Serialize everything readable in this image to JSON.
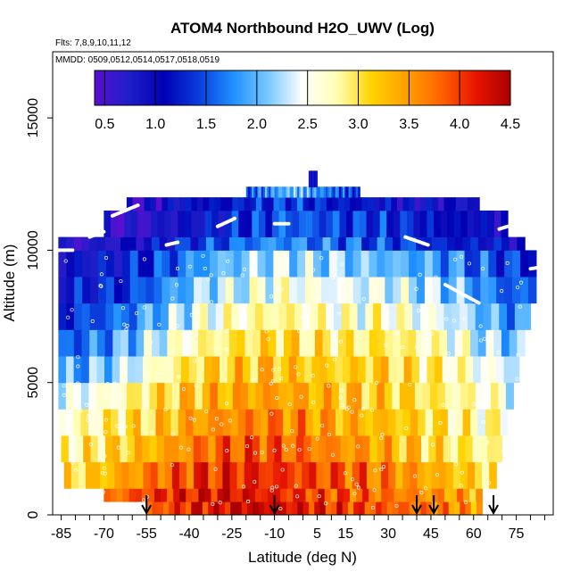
{
  "chart_data": {
    "type": "heatmap",
    "title": "ATOM4 Northbound H2O_UWV (Log)",
    "subtitle_flights": "Flts: 7,8,9,10,11,12",
    "subtitle_dates": "MMDD: 0509,0512,0514,0517,0518,0519",
    "xlabel": "Latitude (deg N)",
    "ylabel": "Altitude (m)",
    "xlim": [
      -88,
      88
    ],
    "ylim": [
      0,
      17500
    ],
    "x_ticks": [
      -85,
      -70,
      -55,
      -40,
      -25,
      -10,
      5,
      15,
      30,
      45,
      60,
      75
    ],
    "x_tick_labels": [
      "-85",
      "-70",
      "-55",
      "-40",
      "-25",
      "-10",
      "5",
      "15",
      "30",
      "45",
      "60",
      "75"
    ],
    "y_ticks": [
      0,
      5000,
      10000,
      15000
    ],
    "y_tick_labels": [
      "0",
      "5000",
      "10000",
      "15000"
    ],
    "colorbar": {
      "min": 0.4,
      "max": 4.5,
      "ticks": [
        0.5,
        1.0,
        1.5,
        2.0,
        2.5,
        3.0,
        3.5,
        4.0,
        4.5
      ],
      "tick_labels": [
        "0.5",
        "1.0",
        "1.5",
        "2.0",
        "2.5",
        "3.0",
        "3.5",
        "4.0",
        "4.5"
      ],
      "colors": [
        "#5a0fd0",
        "#1e1ec8",
        "#0000b4",
        "#0a3cdc",
        "#1e90ff",
        "#78c8ff",
        "#ffffff",
        "#ffffb4",
        "#ffd200",
        "#ffa000",
        "#ff6400",
        "#e61400",
        "#aa0000"
      ]
    },
    "profile_bands": [
      {
        "alt_low": 0,
        "alt_high": 500,
        "lat_start": -55,
        "lat_end": 63,
        "values": [
          3.7,
          4.0,
          4.2,
          4.3,
          4.4,
          4.3,
          4.2,
          4.1,
          4.0,
          3.9,
          3.8,
          3.7,
          3.6,
          3.5
        ]
      },
      {
        "alt_low": 500,
        "alt_high": 1000,
        "lat_start": -70,
        "lat_end": 63,
        "values": [
          3.6,
          3.9,
          4.1,
          4.2,
          4.3,
          4.2,
          4.1,
          4.0,
          3.9,
          3.8,
          3.7,
          3.6,
          3.5,
          3.4
        ]
      },
      {
        "alt_low": 1000,
        "alt_high": 2000,
        "lat_start": -84,
        "lat_end": 68,
        "values": [
          3.0,
          3.2,
          3.5,
          3.8,
          4.0,
          4.1,
          4.1,
          4.0,
          3.9,
          3.8,
          3.6,
          3.4,
          3.2,
          3.0
        ]
      },
      {
        "alt_low": 2000,
        "alt_high": 3000,
        "lat_start": -85,
        "lat_end": 70,
        "values": [
          2.8,
          3.0,
          3.2,
          3.4,
          3.7,
          3.9,
          3.9,
          3.8,
          3.6,
          3.5,
          3.3,
          3.1,
          2.9,
          2.8
        ]
      },
      {
        "alt_low": 3000,
        "alt_high": 4000,
        "lat_start": -86,
        "lat_end": 72,
        "values": [
          2.6,
          2.8,
          3.0,
          3.2,
          3.5,
          3.6,
          3.7,
          3.6,
          3.4,
          3.3,
          3.2,
          3.0,
          2.8,
          2.7
        ]
      },
      {
        "alt_low": 4000,
        "alt_high": 5000,
        "lat_start": -86,
        "lat_end": 74,
        "values": [
          2.3,
          2.5,
          2.8,
          3.1,
          3.3,
          3.4,
          3.5,
          3.4,
          3.3,
          3.2,
          3.1,
          2.9,
          2.7,
          2.5
        ]
      },
      {
        "alt_low": 5000,
        "alt_high": 6000,
        "lat_start": -86,
        "lat_end": 76,
        "values": [
          1.8,
          2.0,
          2.3,
          2.8,
          3.1,
          3.2,
          3.3,
          3.2,
          3.1,
          3.2,
          3.0,
          2.8,
          2.5,
          2.3
        ]
      },
      {
        "alt_low": 6000,
        "alt_high": 7000,
        "lat_start": -86,
        "lat_end": 78,
        "values": [
          1.5,
          1.7,
          2.0,
          2.5,
          2.8,
          3.0,
          3.1,
          3.0,
          2.9,
          3.0,
          2.8,
          2.6,
          2.2,
          2.0
        ]
      },
      {
        "alt_low": 7000,
        "alt_high": 8000,
        "lat_start": -86,
        "lat_end": 80,
        "values": [
          1.3,
          1.5,
          1.7,
          2.1,
          2.5,
          2.7,
          2.9,
          2.7,
          2.6,
          2.7,
          2.5,
          2.3,
          1.9,
          1.7
        ]
      },
      {
        "alt_low": 8000,
        "alt_high": 9000,
        "lat_start": -86,
        "lat_end": 82,
        "values": [
          1.1,
          1.2,
          1.4,
          1.8,
          2.2,
          2.4,
          2.6,
          2.5,
          2.4,
          2.4,
          2.2,
          2.0,
          1.6,
          1.5
        ]
      },
      {
        "alt_low": 9000,
        "alt_high": 10000,
        "lat_start": -86,
        "lat_end": 82,
        "values": [
          0.9,
          1.0,
          1.2,
          1.5,
          1.9,
          2.1,
          2.3,
          2.2,
          2.1,
          2.0,
          1.9,
          1.7,
          1.4,
          1.3
        ]
      },
      {
        "alt_low": 10000,
        "alt_high": 10500,
        "lat_start": -86,
        "lat_end": 78,
        "values": [
          0.6,
          0.7,
          0.9,
          1.1,
          1.4,
          1.6,
          1.8,
          1.7,
          1.6,
          1.5,
          1.4,
          1.2,
          1.1,
          1.0
        ]
      },
      {
        "alt_low": 10500,
        "alt_high": 11500,
        "lat_start": -70,
        "lat_end": 72,
        "values": [
          0.5,
          0.6,
          0.8,
          1.0,
          1.2,
          1.4,
          1.6,
          1.5,
          1.4,
          1.3,
          1.2,
          1.1,
          1.0,
          0.9
        ]
      },
      {
        "alt_low": 11500,
        "alt_high": 12000,
        "lat_start": -62,
        "lat_end": 62,
        "values": [
          0.6,
          0.8,
          1.0,
          1.1,
          1.2,
          1.3,
          1.4,
          1.3,
          1.2,
          1.1,
          1.0,
          0.9,
          0.9,
          0.8
        ]
      },
      {
        "alt_low": 12000,
        "alt_high": 12400,
        "lat_start": -20,
        "lat_end": 20,
        "values": [
          1.4,
          1.6,
          1.7,
          1.8,
          1.9,
          2.0,
          2.0,
          1.9,
          1.8,
          1.7,
          1.6,
          1.5,
          1.4,
          1.3
        ]
      },
      {
        "alt_low": 12400,
        "alt_high": 13000,
        "lat_start": 2,
        "lat_end": 5,
        "values": [
          1.0,
          1.0,
          1.0,
          1.0,
          1.0,
          1.0,
          1.0,
          1.0,
          1.0,
          1.0,
          1.0,
          1.0,
          1.0,
          1.0
        ]
      }
    ],
    "flight_track_segments": [
      {
        "lat_from": -86,
        "lat_to": -81,
        "alt_from": 10000,
        "alt_to": 10000
      },
      {
        "lat_from": -75,
        "lat_to": -70,
        "alt_from": 10500,
        "alt_to": 10700
      },
      {
        "lat_from": -67,
        "lat_to": -58,
        "alt_from": 11300,
        "alt_to": 11700
      },
      {
        "lat_from": -48,
        "lat_to": -44,
        "alt_from": 10200,
        "alt_to": 10300
      },
      {
        "lat_from": -30,
        "lat_to": -24,
        "alt_from": 10900,
        "alt_to": 11200
      },
      {
        "lat_from": -10,
        "lat_to": -5,
        "alt_from": 11000,
        "alt_to": 11000
      },
      {
        "lat_from": 36,
        "lat_to": 44,
        "alt_from": 10500,
        "alt_to": 10200
      },
      {
        "lat_from": 50,
        "lat_to": 62,
        "alt_from": 8700,
        "alt_to": 8000
      },
      {
        "lat_from": 69,
        "lat_to": 78,
        "alt_from": 10800,
        "alt_to": 11100
      },
      {
        "lat_from": 80,
        "lat_to": 86,
        "alt_from": 9300,
        "alt_to": 9400
      }
    ],
    "profile_markers_lat": [
      -55,
      -10,
      40,
      46,
      67
    ]
  }
}
